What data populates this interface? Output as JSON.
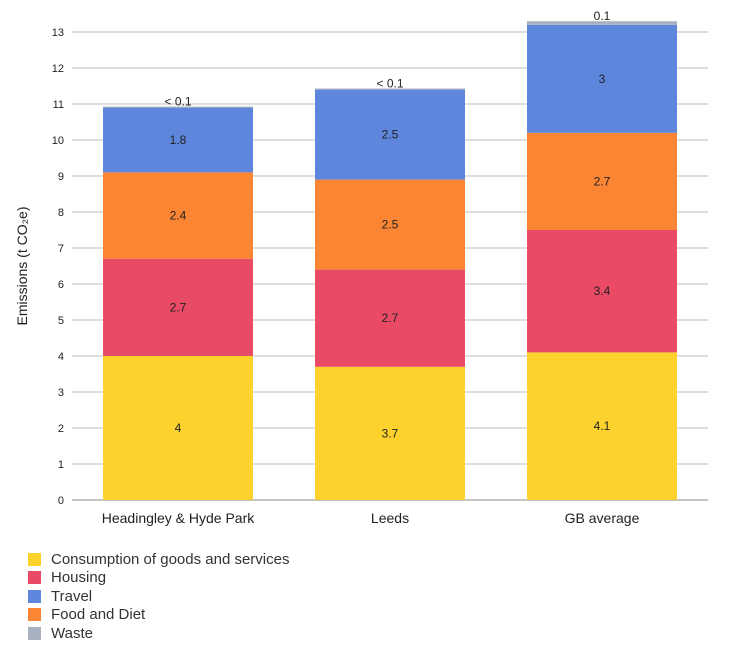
{
  "chart_data": {
    "type": "bar",
    "stacked": true,
    "categories": [
      "Headingley & Hyde Park",
      "Leeds",
      "GB average"
    ],
    "ylabel": "Emissions (t CO₂e)",
    "xlabel": "",
    "ylim": [
      0,
      13
    ],
    "yticks": [
      0,
      1,
      2,
      3,
      4,
      5,
      6,
      7,
      8,
      9,
      10,
      11,
      12,
      13
    ],
    "grid": true,
    "legend_position": "bottom-left",
    "series": [
      {
        "name": "Consumption of goods and services",
        "color": "#FDD22D",
        "values": [
          4,
          3.7,
          4.1
        ],
        "labels": [
          "4",
          "3.7",
          "4.1"
        ]
      },
      {
        "name": "Housing",
        "color": "#E94A66",
        "values": [
          2.7,
          2.7,
          3.4
        ],
        "labels": [
          "2.7",
          "2.7",
          "3.4"
        ]
      },
      {
        "name": "Food and Diet",
        "color": "#FB8532",
        "values": [
          2.4,
          2.5,
          2.7
        ],
        "labels": [
          "2.4",
          "2.5",
          "2.7"
        ]
      },
      {
        "name": "Travel",
        "color": "#5E86DC",
        "values": [
          1.8,
          2.5,
          3
        ],
        "labels": [
          "1.8",
          "2.5",
          "3"
        ]
      },
      {
        "name": "Waste",
        "color": "#A8B1BF",
        "values": [
          0.03,
          0.03,
          0.1
        ],
        "labels": [
          "< 0.1",
          "< 0.1",
          "0.1"
        ]
      }
    ],
    "legend_order": [
      "Consumption of goods and services",
      "Housing",
      "Travel",
      "Food and Diet",
      "Waste"
    ]
  }
}
